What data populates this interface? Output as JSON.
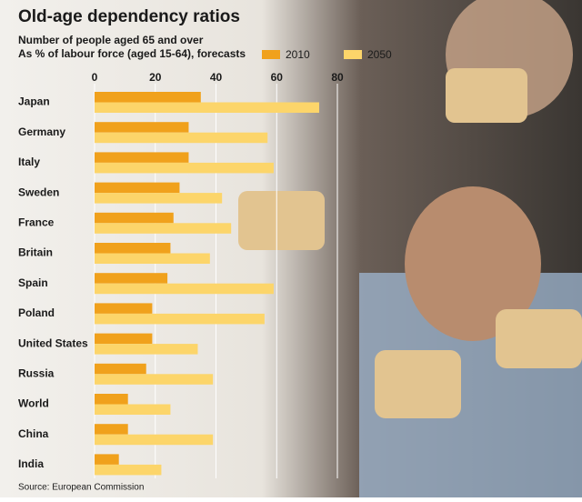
{
  "chart_data": {
    "type": "bar",
    "orientation": "horizontal",
    "title": "Old-age dependency ratios",
    "subtitle": [
      "Number of people aged 65 and over",
      "As % of labour force (aged 15-64), forecasts"
    ],
    "source": "Source: European Commission",
    "categories": [
      "Japan",
      "Germany",
      "Italy",
      "Sweden",
      "France",
      "Britain",
      "Spain",
      "Poland",
      "United States",
      "Russia",
      "World",
      "China",
      "India"
    ],
    "series": [
      {
        "name": "2010",
        "color": "#f0a11c",
        "values": [
          35,
          31,
          31,
          28,
          26,
          25,
          24,
          19,
          19,
          17,
          11,
          11,
          8
        ]
      },
      {
        "name": "2050",
        "color": "#fcd56a",
        "values": [
          74,
          57,
          59,
          42,
          45,
          38,
          59,
          56,
          34,
          39,
          25,
          39,
          22
        ]
      }
    ],
    "xlim": [
      0,
      80
    ],
    "xticks": [
      0,
      20,
      40,
      60,
      80
    ],
    "grid": true
  }
}
